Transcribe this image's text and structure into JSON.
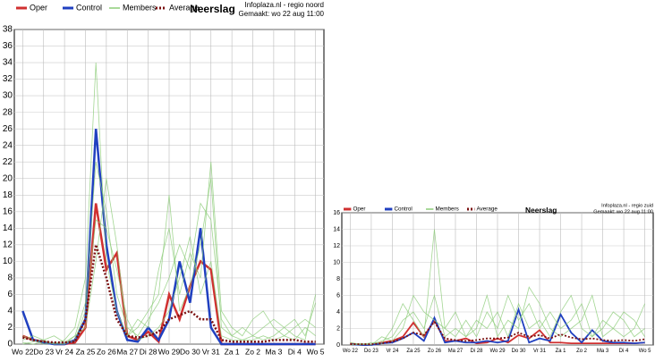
{
  "chart_data": [
    {
      "type": "line",
      "title": "Neerslag",
      "source": "Infoplaza.nl - regio noord",
      "created": "Gemaakt: wo 22 aug 11:00",
      "x": [
        0,
        0.5,
        1,
        1.5,
        2,
        2.5,
        3,
        3.5,
        4,
        4.5,
        5,
        5.5,
        6,
        6.5,
        7,
        7.5,
        8,
        8.5,
        9,
        9.5,
        10,
        10.5,
        11,
        11.5,
        12,
        12.5,
        13,
        13.5,
        14
      ],
      "xlim": [
        -0.4,
        14.4
      ],
      "xticks": [
        {
          "value": 0,
          "label": "Wo 22"
        },
        {
          "value": 1,
          "label": "Do 23"
        },
        {
          "value": 2,
          "label": "Vr 24"
        },
        {
          "value": 3,
          "label": "Za 25"
        },
        {
          "value": 4,
          "label": "Zo 26"
        },
        {
          "value": 5,
          "label": "Ma 27"
        },
        {
          "value": 6,
          "label": "Di 28"
        },
        {
          "value": 7,
          "label": "Wo 29"
        },
        {
          "value": 8,
          "label": "Do 30"
        },
        {
          "value": 9,
          "label": "Vr 31"
        },
        {
          "value": 10,
          "label": "Za 1"
        },
        {
          "value": 11,
          "label": "Zo 2"
        },
        {
          "value": 12,
          "label": "Ma 3"
        },
        {
          "value": 13,
          "label": "Di 4"
        },
        {
          "value": 14,
          "label": "Wo 5"
        }
      ],
      "ylim": [
        0,
        38
      ],
      "yticks": [
        0,
        2,
        4,
        6,
        8,
        10,
        12,
        14,
        16,
        18,
        20,
        22,
        24,
        26,
        28,
        30,
        32,
        34,
        36,
        38
      ],
      "grid": true,
      "series": [
        {
          "name": "Oper",
          "color": "#d03030",
          "values": [
            1,
            0.5,
            0.3,
            0,
            0,
            0.2,
            2,
            17,
            9,
            11,
            1,
            0.5,
            1.5,
            0.3,
            6,
            3,
            7,
            10,
            9,
            0,
            0,
            0,
            0,
            0,
            0,
            0,
            0,
            0,
            0
          ]
        },
        {
          "name": "Control",
          "color": "#2040c0",
          "values": [
            4,
            0.5,
            0.2,
            0,
            0,
            0.5,
            3,
            26,
            12,
            4,
            0.5,
            0.3,
            2,
            0.5,
            3,
            10,
            5,
            14,
            2,
            0,
            0,
            0,
            0,
            0,
            0,
            0,
            0,
            0,
            0
          ]
        },
        {
          "name": "Members",
          "color": "#8ccc78",
          "members": [
            [
              0.5,
              1,
              0.5,
              0,
              0,
              1,
              5,
              22,
              16,
              6,
              2,
              1,
              3,
              5,
              8,
              12,
              9,
              17,
              15,
              3,
              1,
              2,
              1,
              0.5,
              1,
              2,
              3,
              1,
              5
            ],
            [
              0.2,
              0,
              0.3,
              0,
              0.5,
              2,
              8,
              34,
              10,
              4,
              1,
              3,
              2,
              9,
              14,
              6,
              11,
              8,
              22,
              4,
              2,
              1,
              3,
              4,
              2,
              1,
              0.5,
              2,
              1
            ],
            [
              1,
              0.5,
              0,
              0.2,
              0,
              0.5,
              4,
              15,
              14,
              9,
              3,
              0.5,
              1,
              2,
              4,
              8,
              13,
              6,
              10,
              1,
              0.5,
              0.5,
              1,
              2,
              3,
              2,
              1,
              0.5,
              6
            ],
            [
              0,
              0.3,
              0.5,
              1,
              0.2,
              1,
              2,
              10,
              20,
              12,
              1,
              2,
              4,
              6,
              18,
              4,
              7,
              12,
              20,
              2,
              1,
              0.5,
              0.5,
              1,
              0.5,
              1,
              2,
              3,
              2
            ]
          ]
        },
        {
          "name": "Average",
          "color": "#7a1010",
          "dashed": true,
          "values": [
            0.8,
            0.5,
            0.3,
            0.2,
            0.2,
            0.3,
            3,
            12,
            8,
            3,
            1,
            0.8,
            1,
            1.5,
            3,
            3.5,
            4,
            3,
            3,
            0.5,
            0.3,
            0.3,
            0.3,
            0.3,
            0.5,
            0.5,
            0.5,
            0.3,
            0.3
          ]
        }
      ]
    },
    {
      "type": "line",
      "title": "Neerslag",
      "source": "Infoplaza.nl - regio zuid",
      "created": "Gemaakt: wo 22 aug 11:00",
      "x": [
        0,
        0.5,
        1,
        1.5,
        2,
        2.5,
        3,
        3.5,
        4,
        4.5,
        5,
        5.5,
        6,
        6.5,
        7,
        7.5,
        8,
        8.5,
        9,
        9.5,
        10,
        10.5,
        11,
        11.5,
        12,
        12.5,
        13,
        13.5,
        14
      ],
      "xlim": [
        -0.4,
        14.4
      ],
      "xticks": [
        {
          "value": 0,
          "label": "Wo 22"
        },
        {
          "value": 1,
          "label": "Do 23"
        },
        {
          "value": 2,
          "label": "Vr 24"
        },
        {
          "value": 3,
          "label": "Za 25"
        },
        {
          "value": 4,
          "label": "Zo 26"
        },
        {
          "value": 5,
          "label": "Ma 27"
        },
        {
          "value": 6,
          "label": "Di 28"
        },
        {
          "value": 7,
          "label": "Wo 29"
        },
        {
          "value": 8,
          "label": "Do 30"
        },
        {
          "value": 9,
          "label": "Vr 31"
        },
        {
          "value": 10,
          "label": "Za 1"
        },
        {
          "value": 11,
          "label": "Zo 2"
        },
        {
          "value": 12,
          "label": "Ma 3"
        },
        {
          "value": 13,
          "label": "Di 4"
        },
        {
          "value": 14,
          "label": "Wo 5"
        }
      ],
      "ylim": [
        0,
        16
      ],
      "yticks": [
        0,
        2,
        4,
        6,
        8,
        10,
        12,
        14,
        16
      ],
      "grid": true,
      "series": [
        {
          "name": "Oper",
          "color": "#d03030",
          "values": [
            0.2,
            0,
            0,
            0.3,
            0.5,
            1,
            2.7,
            1,
            3,
            0.5,
            0.5,
            0.8,
            0.2,
            0.3,
            0.8,
            0.3,
            1.2,
            0.8,
            1.8,
            0.3,
            0.3,
            0.2,
            0.2,
            0.2,
            0.2,
            0.2,
            0.2,
            0.2,
            0.3
          ]
        },
        {
          "name": "Control",
          "color": "#2040c0",
          "values": [
            0.1,
            0,
            0,
            0.2,
            0.3,
            0.8,
            1.5,
            0.5,
            3.3,
            0.3,
            0.5,
            0.3,
            0.3,
            0.5,
            0.3,
            0.5,
            4.3,
            0.3,
            0.8,
            0.5,
            3.7,
            1.5,
            0.3,
            1.8,
            0.5,
            0.3,
            0.3,
            0.2,
            0.3
          ]
        },
        {
          "name": "Members",
          "color": "#8ccc78",
          "members": [
            [
              0,
              0.2,
              0.1,
              0.5,
              1,
              3,
              4,
              2,
              6,
              1,
              2,
              1,
              3,
              2,
              4,
              1,
              5,
              2,
              3,
              1,
              4,
              6,
              2,
              1,
              3,
              2,
              1,
              2,
              5
            ],
            [
              0.1,
              0,
              0.3,
              0.2,
              2,
              5,
              3,
              1,
              14,
              2,
              1,
              3,
              1,
              4,
              2,
              6,
              3,
              5,
              2,
              4,
              2,
              3,
              5,
              1,
              2,
              4,
              3,
              1,
              2
            ],
            [
              0.3,
              0.1,
              0,
              1,
              0.5,
              2,
              6,
              4,
              3,
              2,
              4,
              1,
              2,
              6,
              1,
              3,
              2,
              7,
              5,
              2,
              1,
              2,
              3,
              6,
              1,
              2,
              4,
              3,
              1
            ]
          ]
        },
        {
          "name": "Average",
          "color": "#7a1010",
          "dashed": true,
          "values": [
            0.1,
            0.1,
            0.1,
            0.2,
            0.4,
            0.8,
            1.5,
            1.2,
            2.8,
            0.8,
            0.6,
            0.5,
            0.6,
            0.8,
            0.8,
            0.9,
            1.5,
            1,
            1.2,
            0.8,
            1.3,
            0.9,
            0.7,
            0.8,
            0.6,
            0.5,
            0.6,
            0.5,
            0.7
          ]
        }
      ]
    }
  ]
}
